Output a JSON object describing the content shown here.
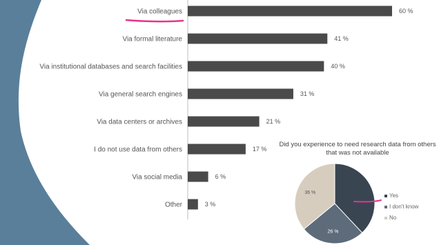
{
  "colors": {
    "background": "#ffffff",
    "left_shape": "#5a7f9a",
    "bar": "#4a4a4a",
    "axis": "#bdbdbd",
    "highlight": "#e6338c",
    "pie_yes": "#3a4552",
    "pie_dont_know": "#5d6b7b",
    "pie_no": "#d7cdbf"
  },
  "chart_data": [
    {
      "type": "bar",
      "orientation": "horizontal",
      "categories": [
        "Via colleagues",
        "Via formal literature",
        "Via institutional databases and search facilities",
        "Via general search engines",
        "Via data centers or archives",
        "I do not use data from others",
        "Via social media",
        "Other"
      ],
      "values": [
        60,
        41,
        40,
        31,
        21,
        17,
        6,
        3
      ],
      "value_labels": [
        "60 %",
        "41 %",
        "40 %",
        "31 %",
        "21 %",
        "17 %",
        "6 %",
        "3 %"
      ],
      "xlim": [
        0,
        60
      ],
      "grid": false,
      "highlighted_category": "Via colleagues"
    },
    {
      "type": "pie",
      "title": "Did you experience to need research data from others that was not available",
      "slices": [
        {
          "label": "Yes",
          "value": 38,
          "color_key": "pie_yes"
        },
        {
          "label": "I don't know",
          "value": 26,
          "color_key": "pie_dont_know"
        },
        {
          "label": "No",
          "value": 36,
          "color_key": "pie_no"
        }
      ],
      "slice_value_labels": [
        "",
        "26 %",
        "36 %"
      ],
      "legend": [
        "Yes",
        "I don't know",
        "No"
      ],
      "legend_placement": "right",
      "highlighted_legend": "Yes"
    }
  ]
}
